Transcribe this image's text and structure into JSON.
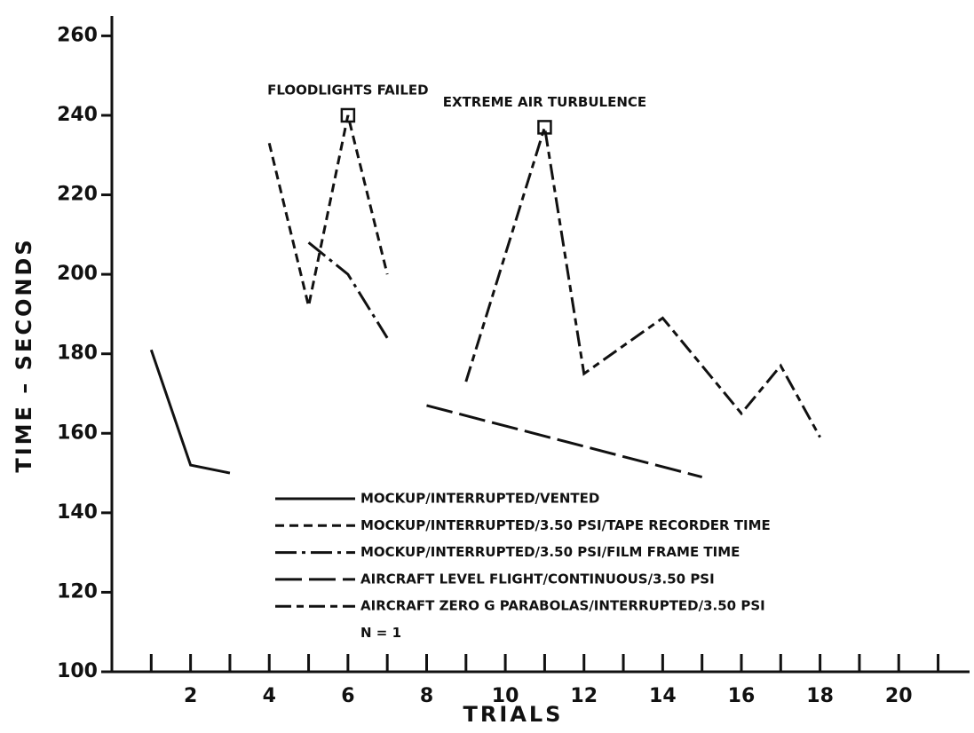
{
  "chart_data": {
    "type": "line",
    "xlabel": "TRIALS",
    "ylabel": "TIME – SECONDS",
    "xlim": [
      0,
      21.8
    ],
    "ylim": [
      100,
      265
    ],
    "xticks": [
      2,
      4,
      6,
      8,
      10,
      12,
      14,
      16,
      18,
      20
    ],
    "xminorticks": [
      1,
      3,
      5,
      7,
      9,
      11,
      13,
      15,
      17,
      19,
      21
    ],
    "yticks": [
      100,
      120,
      140,
      160,
      180,
      200,
      220,
      240,
      260
    ],
    "series": [
      {
        "name": "MOCKUP/INTERRUPTED/VENTED",
        "color": "#111111",
        "dash": "none",
        "x": [
          1,
          2,
          3
        ],
        "values": [
          181,
          152,
          150
        ]
      },
      {
        "name": "MOCKUP/INTERRUPTED/3.50 PSI/TAPE RECORDER TIME",
        "color": "#111111",
        "dash": "10 6",
        "x": [
          4,
          5,
          6,
          7
        ],
        "values": [
          233,
          192,
          240,
          200
        ]
      },
      {
        "name": "MOCKUP/INTERRUPTED/3.50 PSI/FILM FRAME TIME",
        "color": "#111111",
        "dash": "24 6 4 6",
        "x": [
          5,
          6,
          7
        ],
        "values": [
          208,
          200,
          184
        ]
      },
      {
        "name": "AIRCRAFT LEVEL FLIGHT/CONTINUOUS/3.50 PSI",
        "color": "#111111",
        "dash": "30 8",
        "x": [
          8,
          15
        ],
        "values": [
          167,
          149
        ]
      },
      {
        "name": "AIRCRAFT ZERO G PARABOLAS/INTERRUPTED/3.50 PSI",
        "color": "#111111",
        "dash": "18 6 8 6",
        "x": [
          9,
          11,
          12,
          14,
          16,
          17,
          18
        ],
        "values": [
          173,
          237,
          175,
          189,
          165,
          177,
          159
        ]
      }
    ],
    "note": "N = 1",
    "annotations": [
      {
        "text": "FLOODLIGHTS FAILED",
        "x": 6,
        "y": 240
      },
      {
        "text": "EXTREME AIR TURBULENCE",
        "x": 11,
        "y": 237
      }
    ]
  }
}
